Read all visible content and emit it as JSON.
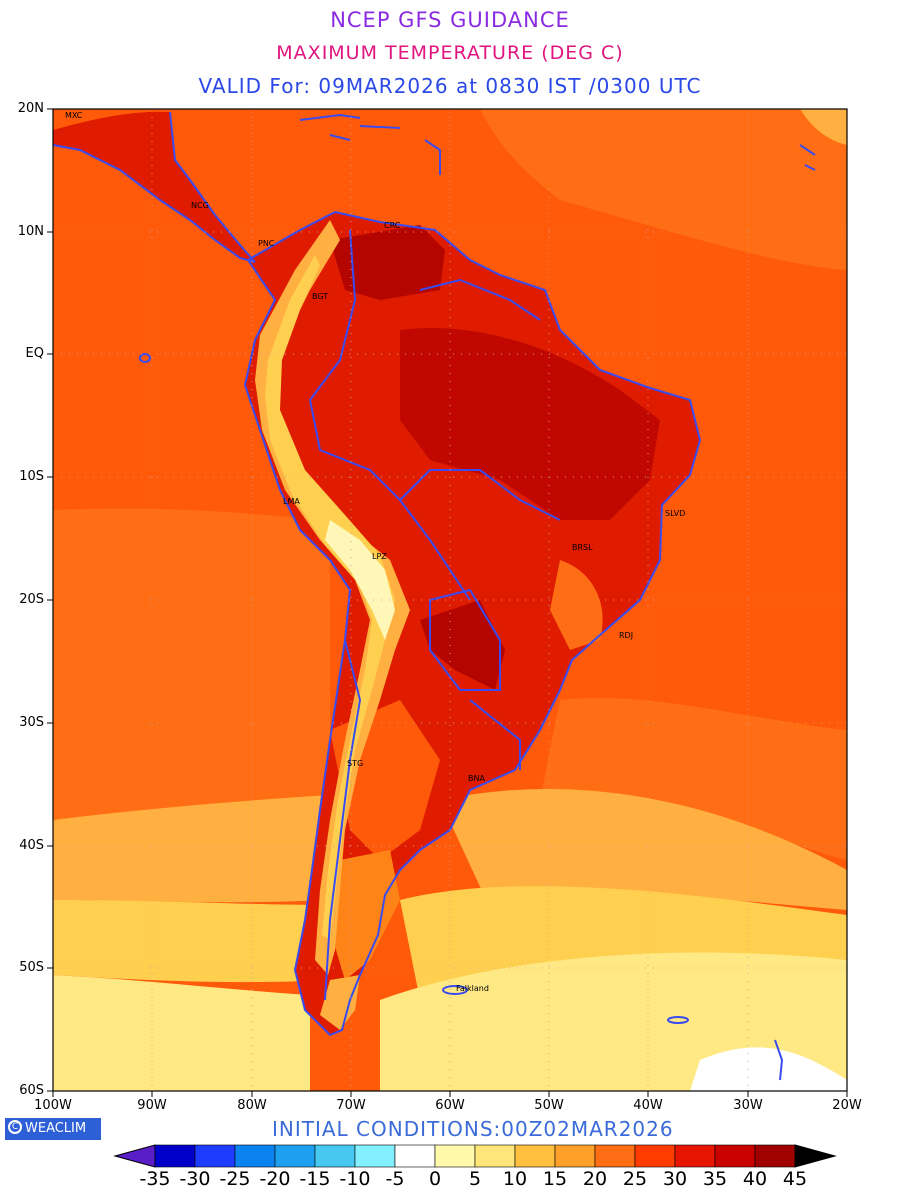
{
  "titles": {
    "line1": "NCEP GFS GUIDANCE",
    "line2": "MAXIMUM TEMPERATURE (DEG C)",
    "line3": "VALID For: 09MAR2026 at 0830 IST /0300 UTC"
  },
  "axes": {
    "lat_labels": [
      "20N",
      "10N",
      "EQ",
      "10S",
      "20S",
      "30S",
      "40S",
      "50S",
      "60S"
    ],
    "lon_labels": [
      "100W",
      "90W",
      "80W",
      "70W",
      "60W",
      "50W",
      "40W",
      "30W",
      "20W"
    ],
    "extent": {
      "lon_min": -100,
      "lon_max": -20,
      "lat_min": -60,
      "lat_max": 20
    },
    "grid": "dotted"
  },
  "cities": [
    {
      "name": "MXC",
      "lon": -99,
      "lat": 19.4
    },
    {
      "name": "NCG",
      "lon": -86.3,
      "lat": 12.1
    },
    {
      "name": "PNC",
      "lon": -79.5,
      "lat": 9
    },
    {
      "name": "CRC",
      "lon": -66.9,
      "lat": 10.5
    },
    {
      "name": "BGT",
      "lon": -74.1,
      "lat": 4.7
    },
    {
      "name": "LMA",
      "lon": -77,
      "lat": -12
    },
    {
      "name": "LPZ",
      "lon": -68.1,
      "lat": -16.5
    },
    {
      "name": "SLVD",
      "lon": -38.5,
      "lat": -13
    },
    {
      "name": "BRSL",
      "lon": -47.9,
      "lat": -15.8
    },
    {
      "name": "RDJ",
      "lon": -43.2,
      "lat": -22.9
    },
    {
      "name": "STG",
      "lon": -70.6,
      "lat": -33.4
    },
    {
      "name": "BNA",
      "lon": -58.4,
      "lat": -34.6
    },
    {
      "name": "Falkland",
      "lon": -59.6,
      "lat": -51.7
    }
  ],
  "footer": {
    "logo": "WEACLIM",
    "initial_conditions": "INITIAL CONDITIONS:00Z02MAR2026"
  },
  "colorbar": {
    "labels": [
      "-35",
      "-30",
      "-25",
      "-20",
      "-15",
      "-10",
      "-5",
      "0",
      "5",
      "10",
      "15",
      "20",
      "25",
      "30",
      "35",
      "40",
      "45"
    ],
    "colors": [
      "#5a1ec8",
      "#0000c8",
      "#1e3cff",
      "#0a82f0",
      "#1ea0f0",
      "#46c8f0",
      "#82f0ff",
      "#ffffff",
      "#fffaaa",
      "#ffe678",
      "#ffc040",
      "#ffa028",
      "#ff6e14",
      "#ff3c00",
      "#e61400",
      "#c80000",
      "#a00000",
      "#000000"
    ]
  },
  "map_colors": {
    "border": "#3a4cf0",
    "levels": [
      "#fff7b8",
      "#ffe985",
      "#ffd050",
      "#ffb040",
      "#ff8418",
      "#ff5a0a",
      "#ff3800",
      "#e01c00",
      "#c00800"
    ]
  }
}
